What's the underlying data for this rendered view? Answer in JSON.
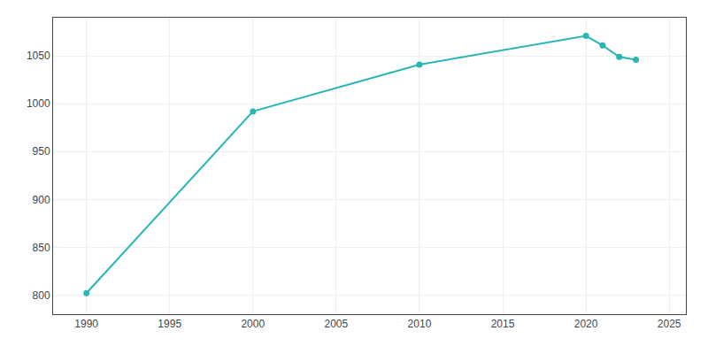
{
  "chart_data": {
    "type": "line",
    "x": [
      1990,
      2000,
      2010,
      2020,
      2021,
      2022,
      2023
    ],
    "values": [
      802,
      992,
      1041,
      1071,
      1061,
      1049,
      1046
    ],
    "color": "#2ab5b5",
    "marker": "circle",
    "xlim": [
      1988,
      2026
    ],
    "ylim": [
      780,
      1090
    ],
    "xticks": [
      1990,
      1995,
      2000,
      2005,
      2010,
      2015,
      2020,
      2025
    ],
    "yticks": [
      800,
      850,
      900,
      950,
      1000,
      1050
    ],
    "grid": true
  }
}
